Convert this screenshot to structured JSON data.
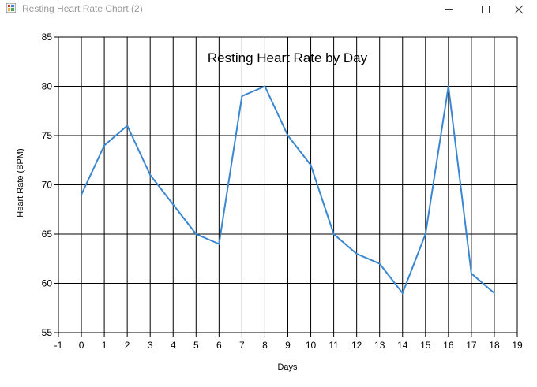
{
  "window": {
    "title": "Resting Heart Rate Chart (2)",
    "icon": "app-chart-icon",
    "controls": [
      "minimize-icon",
      "maximize-icon",
      "close-icon"
    ]
  },
  "chart_data": {
    "type": "line",
    "title": "Resting Heart Rate by Day",
    "xlabel": "Days",
    "ylabel": "Heart Rate (BPM)",
    "xlim": [
      -1,
      19
    ],
    "ylim": [
      55,
      85
    ],
    "x_ticks": [
      -1,
      0,
      1,
      2,
      3,
      4,
      5,
      6,
      7,
      8,
      9,
      10,
      11,
      12,
      13,
      14,
      15,
      16,
      17,
      18,
      19
    ],
    "y_ticks": [
      55,
      60,
      65,
      70,
      75,
      80,
      85
    ],
    "grid": true,
    "legend": "none",
    "series": [
      {
        "color": "#3a86d0",
        "x": [
          0,
          1,
          2,
          3,
          4,
          5,
          6,
          7,
          8,
          9,
          10,
          11,
          12,
          13,
          14,
          15,
          16,
          17,
          18
        ],
        "values": [
          69,
          74,
          76,
          71,
          68,
          65,
          64,
          79,
          80,
          75,
          72,
          65,
          63,
          62,
          59,
          65,
          80,
          61,
          59
        ]
      }
    ]
  }
}
